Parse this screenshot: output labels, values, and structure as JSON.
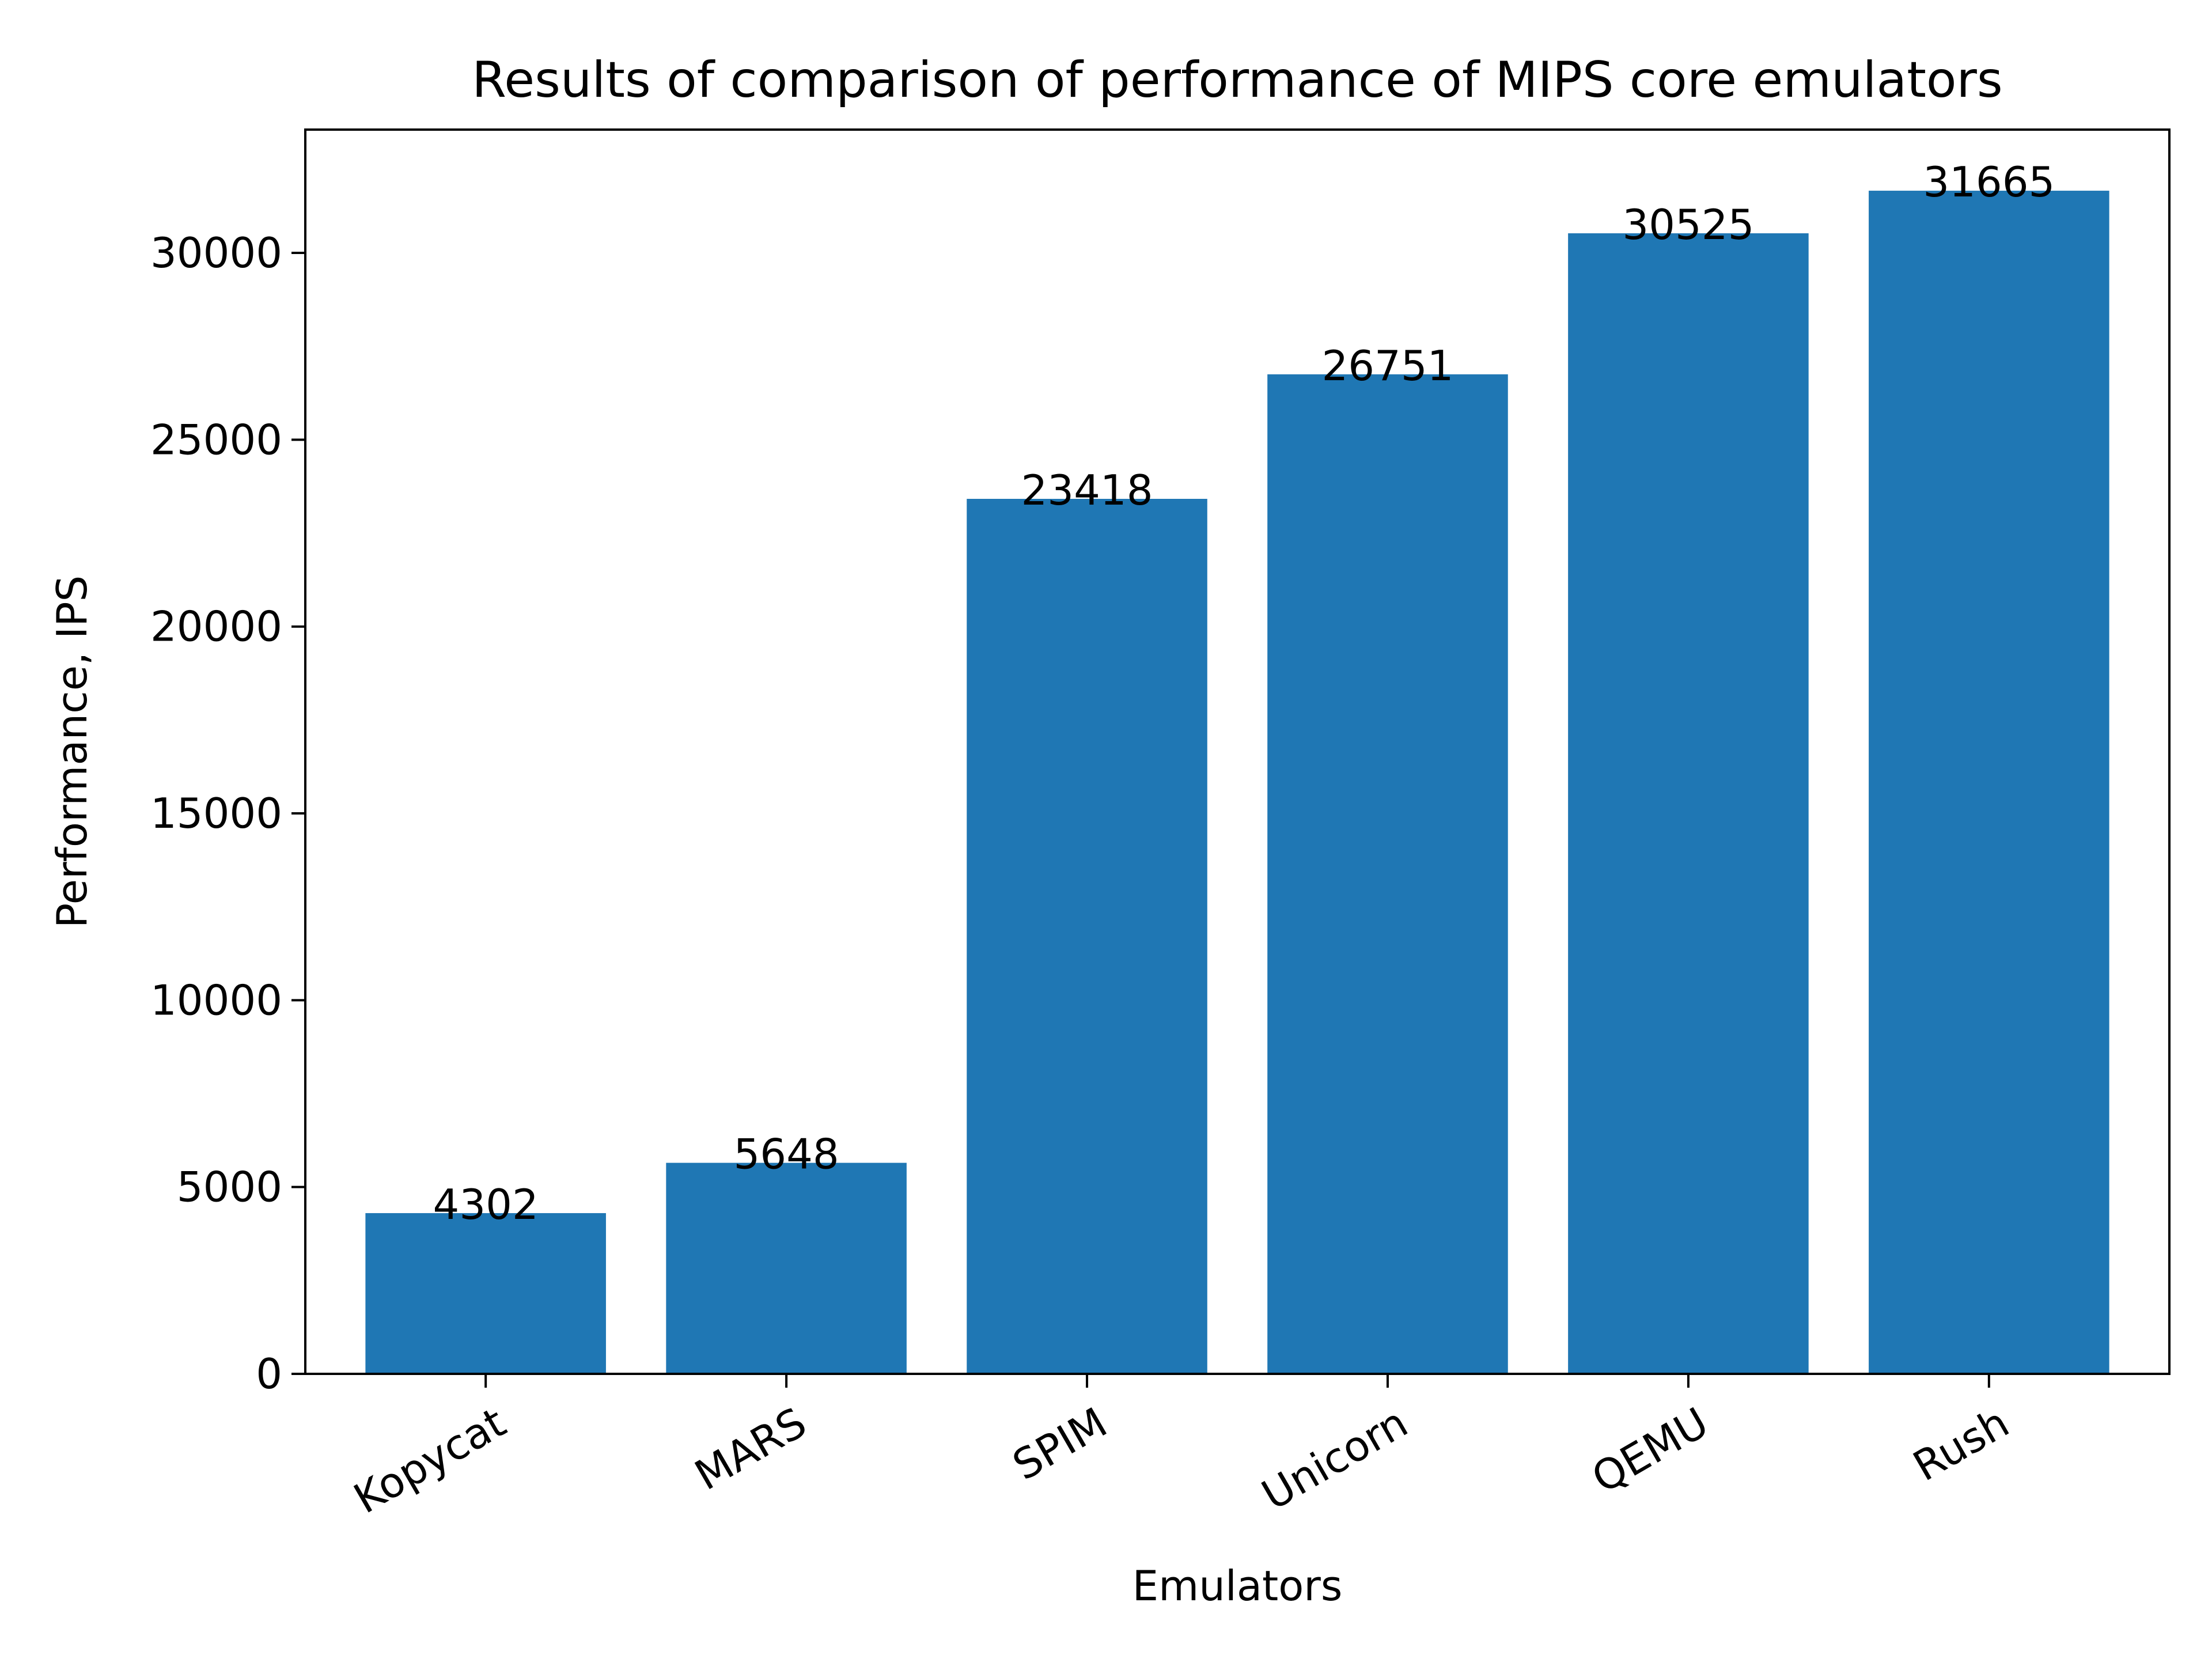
{
  "chart_data": {
    "type": "bar",
    "title": "Results of comparison of performance of MIPS core emulators",
    "xlabel": "Emulators",
    "ylabel": "Performance, IPS",
    "categories": [
      "Kopycat",
      "MARS",
      "SPIM",
      "Unicorn",
      "QEMU",
      "Rush"
    ],
    "values": [
      4302,
      5648,
      23418,
      26751,
      30525,
      31665
    ],
    "data_labels": [
      "4302",
      "5648",
      "23418",
      "26751",
      "30525",
      "31665"
    ],
    "ylim": [
      0,
      33300
    ],
    "yticks": [
      0,
      5000,
      10000,
      15000,
      20000,
      25000,
      30000
    ],
    "ytick_labels": [
      "0",
      "5000",
      "10000",
      "15000",
      "20000",
      "25000",
      "30000"
    ],
    "xtick_rotation_deg": 30,
    "grid": false,
    "legend": "none",
    "bar_color": "#1f77b4"
  }
}
